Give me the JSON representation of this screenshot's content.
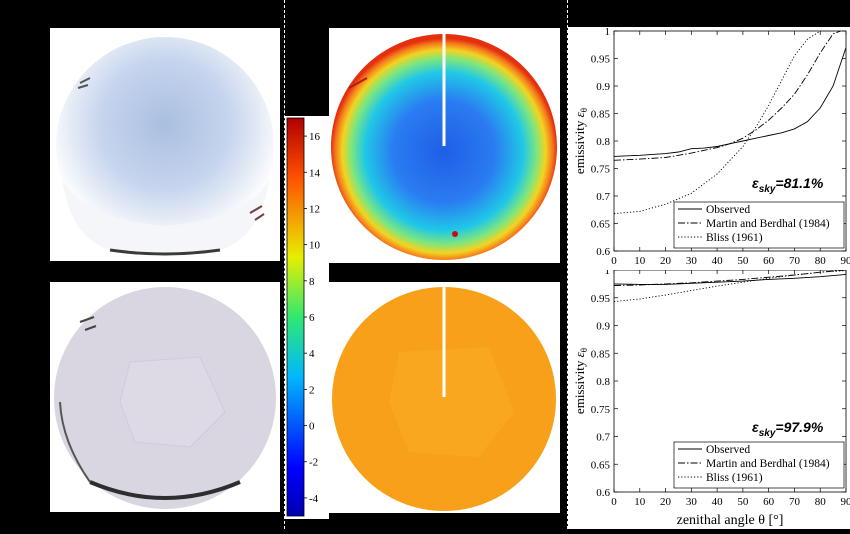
{
  "colorbar": {
    "ticks": [
      16,
      14,
      12,
      10,
      8,
      6,
      4,
      2,
      0,
      -2,
      -4
    ],
    "range": [
      -5,
      17
    ]
  },
  "annotations": {
    "top_eps_symbol": "ε",
    "top_eps_sub": "sky",
    "top_eps_value": "=81.1%",
    "bottom_eps_symbol": "ε",
    "bottom_eps_sub": "sky",
    "bottom_eps_value": "=97.9%"
  },
  "chart_data": [
    {
      "type": "line",
      "ylabel": "emissivity ε_θ",
      "ylabel_main": "emissivity ",
      "ylabel_sym": "ε",
      "ylabel_sub": "θ",
      "xlim": [
        0,
        90
      ],
      "ylim": [
        0.6,
        1.0
      ],
      "xticks": [
        0,
        10,
        20,
        30,
        40,
        50,
        60,
        70,
        80,
        90
      ],
      "yticks": [
        0.6,
        0.65,
        0.7,
        0.75,
        0.8,
        0.85,
        0.9,
        0.95,
        1
      ],
      "ytick_labels": [
        "0.6",
        "0.65",
        "0.7",
        "0.75",
        "0.8",
        "0.85",
        "0.9",
        "0.95",
        "1"
      ],
      "legend_position": "bottom-right",
      "series": [
        {
          "name": "Observed",
          "style": "solid",
          "x": [
            0,
            10,
            20,
            25,
            30,
            35,
            40,
            45,
            50,
            55,
            60,
            65,
            70,
            75,
            80,
            85,
            90
          ],
          "y": [
            0.772,
            0.774,
            0.777,
            0.78,
            0.786,
            0.787,
            0.79,
            0.795,
            0.8,
            0.805,
            0.81,
            0.815,
            0.822,
            0.835,
            0.86,
            0.9,
            0.97
          ]
        },
        {
          "name": "Martin and Berdhal (1984)",
          "style": "dashdot",
          "x": [
            0,
            10,
            20,
            30,
            40,
            45,
            50,
            55,
            60,
            65,
            70,
            75,
            80,
            85,
            88
          ],
          "y": [
            0.765,
            0.767,
            0.77,
            0.778,
            0.788,
            0.795,
            0.805,
            0.82,
            0.838,
            0.86,
            0.885,
            0.92,
            0.96,
            0.995,
            1.0
          ]
        },
        {
          "name": "Bliss (1961)",
          "style": "dotted",
          "x": [
            0,
            10,
            20,
            30,
            40,
            45,
            50,
            55,
            60,
            65,
            70,
            75,
            80,
            85
          ],
          "y": [
            0.668,
            0.672,
            0.685,
            0.705,
            0.74,
            0.765,
            0.79,
            0.825,
            0.865,
            0.91,
            0.955,
            0.985,
            1.0,
            1.0
          ]
        }
      ]
    },
    {
      "type": "line",
      "xlabel": "zenithal angle θ [°]",
      "ylabel": "emissivity ε_θ",
      "ylabel_main": "emissivity ",
      "ylabel_sym": "ε",
      "ylabel_sub": "θ",
      "xlim": [
        0,
        90
      ],
      "ylim": [
        0.6,
        1.0
      ],
      "xticks": [
        0,
        10,
        20,
        30,
        40,
        50,
        60,
        70,
        80,
        90
      ],
      "yticks": [
        0.6,
        0.65,
        0.7,
        0.75,
        0.8,
        0.85,
        0.9,
        0.95,
        1
      ],
      "ytick_labels": [
        "0.6",
        "0.65",
        "0.7",
        "0.75",
        "0.8",
        "0.85",
        "0.9",
        "0.95",
        "1"
      ],
      "legend_position": "bottom-right",
      "series": [
        {
          "name": "Observed",
          "style": "solid",
          "x": [
            0,
            10,
            20,
            30,
            40,
            50,
            60,
            70,
            80,
            90
          ],
          "y": [
            0.975,
            0.974,
            0.974,
            0.976,
            0.978,
            0.98,
            0.983,
            0.985,
            0.988,
            0.992
          ]
        },
        {
          "name": "Martin and Berdhal (1984)",
          "style": "dashdot",
          "x": [
            0,
            10,
            20,
            30,
            40,
            50,
            60,
            70,
            80,
            90
          ],
          "y": [
            0.972,
            0.973,
            0.975,
            0.977,
            0.98,
            0.983,
            0.987,
            0.991,
            0.996,
            1.0
          ]
        },
        {
          "name": "Bliss (1961)",
          "style": "dotted",
          "x": [
            0,
            10,
            20,
            30,
            40,
            50,
            60,
            70,
            80,
            90
          ],
          "y": [
            0.943,
            0.948,
            0.955,
            0.963,
            0.971,
            0.978,
            0.985,
            0.991,
            0.996,
            0.999
          ]
        }
      ]
    }
  ]
}
